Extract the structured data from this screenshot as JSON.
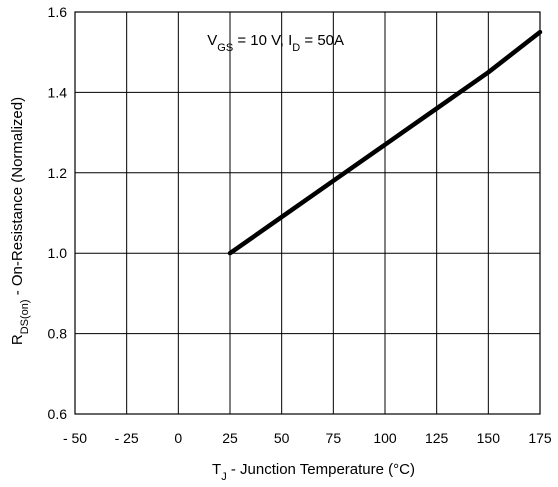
{
  "chart_data": {
    "type": "line",
    "x_axis": {
      "range": [
        -50,
        175
      ],
      "ticks": [
        -50,
        -25,
        0,
        25,
        50,
        75,
        100,
        125,
        150,
        175
      ],
      "tick_labels": [
        "- 50",
        "- 25",
        "0",
        "25",
        "50",
        "75",
        "100",
        "125",
        "150",
        "175"
      ],
      "label": {
        "main": "T",
        "sub": "J",
        "rest": " - Junction Temperature (°C)"
      }
    },
    "y_axis": {
      "range": [
        0.6,
        1.6
      ],
      "ticks": [
        0.6,
        0.8,
        1.0,
        1.2,
        1.4,
        1.6
      ],
      "tick_labels": [
        "0.6",
        "0.8",
        "1.0",
        "1.2",
        "1.4",
        "1.6"
      ],
      "label": {
        "main": "R",
        "sub": "DS(on)",
        "rest": " - On-Resistance  (Normalized)"
      }
    },
    "grid": true,
    "annotation": {
      "parts": [
        {
          "text": "V",
          "sub": false
        },
        {
          "text": "GS",
          "sub": true
        },
        {
          "text": " = 10 V, I",
          "sub": false
        },
        {
          "text": "D",
          "sub": true
        },
        {
          "text": " =  50A",
          "sub": false
        }
      ]
    },
    "series": [
      {
        "color": "#000000",
        "points": [
          [
            25,
            1.0
          ],
          [
            50,
            1.09
          ],
          [
            75,
            1.18
          ],
          [
            100,
            1.27
          ],
          [
            125,
            1.36
          ],
          [
            150,
            1.45
          ],
          [
            175,
            1.55
          ]
        ]
      }
    ]
  }
}
